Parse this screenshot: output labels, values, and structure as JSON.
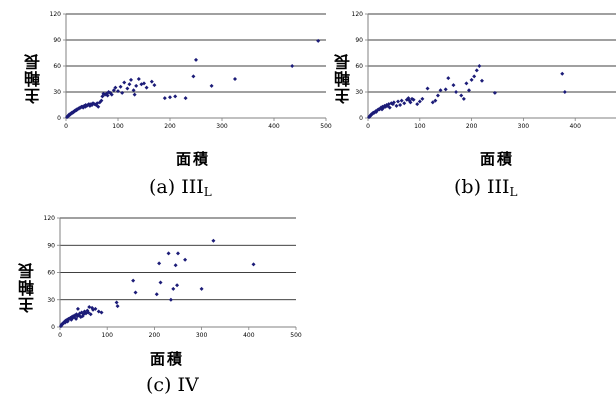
{
  "chart_data": [
    {
      "type": "scatter",
      "caption_prefix": "(a) III",
      "caption_sub": "L",
      "xlabel": "面積",
      "ylabel": "主軸長",
      "xlim": [
        0,
        500
      ],
      "ylim": [
        0,
        120
      ],
      "x_ticks": [
        0,
        100,
        200,
        300,
        400,
        500
      ],
      "y_ticks": [
        0,
        30,
        60,
        90,
        120
      ],
      "grid": "horizontal",
      "marker_color": "#1c1c78",
      "points": [
        [
          2,
          1
        ],
        [
          3,
          2
        ],
        [
          4,
          2
        ],
        [
          5,
          3
        ],
        [
          6,
          3
        ],
        [
          6,
          4
        ],
        [
          7,
          4
        ],
        [
          8,
          4
        ],
        [
          9,
          5
        ],
        [
          10,
          5
        ],
        [
          11,
          6
        ],
        [
          12,
          6
        ],
        [
          13,
          6
        ],
        [
          14,
          7
        ],
        [
          15,
          7
        ],
        [
          16,
          8
        ],
        [
          17,
          8
        ],
        [
          18,
          9
        ],
        [
          20,
          9
        ],
        [
          21,
          10
        ],
        [
          22,
          10
        ],
        [
          24,
          11
        ],
        [
          25,
          11
        ],
        [
          27,
          12
        ],
        [
          28,
          12
        ],
        [
          30,
          13
        ],
        [
          32,
          13
        ],
        [
          33,
          12
        ],
        [
          35,
          14
        ],
        [
          37,
          13
        ],
        [
          38,
          15
        ],
        [
          40,
          14
        ],
        [
          42,
          15
        ],
        [
          44,
          16
        ],
        [
          46,
          14
        ],
        [
          48,
          16
        ],
        [
          50,
          15
        ],
        [
          52,
          17
        ],
        [
          55,
          16
        ],
        [
          58,
          15
        ],
        [
          60,
          17
        ],
        [
          62,
          13
        ],
        [
          65,
          18
        ],
        [
          68,
          20
        ],
        [
          70,
          25
        ],
        [
          72,
          28
        ],
        [
          75,
          27
        ],
        [
          78,
          28
        ],
        [
          80,
          26
        ],
        [
          82,
          30
        ],
        [
          85,
          29
        ],
        [
          88,
          27
        ],
        [
          92,
          32
        ],
        [
          95,
          35
        ],
        [
          100,
          31
        ],
        [
          105,
          36
        ],
        [
          108,
          29
        ],
        [
          112,
          41
        ],
        [
          118,
          34
        ],
        [
          122,
          39
        ],
        [
          125,
          44
        ],
        [
          130,
          32
        ],
        [
          132,
          27
        ],
        [
          135,
          37
        ],
        [
          140,
          45
        ],
        [
          145,
          39
        ],
        [
          150,
          40
        ],
        [
          155,
          35
        ],
        [
          165,
          42
        ],
        [
          170,
          38
        ],
        [
          190,
          23
        ],
        [
          200,
          24
        ],
        [
          210,
          25
        ],
        [
          230,
          23
        ],
        [
          245,
          48
        ],
        [
          250,
          67
        ],
        [
          280,
          37
        ],
        [
          325,
          45
        ],
        [
          435,
          60
        ],
        [
          485,
          89
        ]
      ]
    },
    {
      "type": "scatter",
      "caption_prefix": "(b) III",
      "caption_sub": "L",
      "xlabel": "面積",
      "ylabel": "主軸長",
      "xlim": [
        0,
        500
      ],
      "ylim": [
        0,
        120
      ],
      "x_ticks": [
        0,
        100,
        200,
        300,
        400,
        500
      ],
      "y_ticks": [
        0,
        30,
        60,
        90,
        120
      ],
      "grid": "horizontal",
      "marker_color": "#1c1c78",
      "points": [
        [
          2,
          1
        ],
        [
          3,
          2
        ],
        [
          4,
          2
        ],
        [
          5,
          3
        ],
        [
          6,
          4
        ],
        [
          7,
          4
        ],
        [
          8,
          5
        ],
        [
          9,
          5
        ],
        [
          10,
          6
        ],
        [
          11,
          6
        ],
        [
          12,
          6
        ],
        [
          14,
          7
        ],
        [
          15,
          8
        ],
        [
          16,
          7
        ],
        [
          18,
          9
        ],
        [
          20,
          10
        ],
        [
          22,
          10
        ],
        [
          24,
          11
        ],
        [
          25,
          12
        ],
        [
          27,
          10
        ],
        [
          28,
          13
        ],
        [
          30,
          12
        ],
        [
          32,
          14
        ],
        [
          34,
          13
        ],
        [
          36,
          15
        ],
        [
          38,
          14
        ],
        [
          40,
          16
        ],
        [
          42,
          12
        ],
        [
          45,
          17
        ],
        [
          48,
          16
        ],
        [
          50,
          18
        ],
        [
          55,
          14
        ],
        [
          58,
          19
        ],
        [
          62,
          15
        ],
        [
          65,
          20
        ],
        [
          70,
          17
        ],
        [
          75,
          21
        ],
        [
          78,
          23
        ],
        [
          80,
          20
        ],
        [
          82,
          18
        ],
        [
          85,
          22
        ],
        [
          88,
          21
        ],
        [
          95,
          16
        ],
        [
          100,
          19
        ],
        [
          105,
          22
        ],
        [
          115,
          34
        ],
        [
          125,
          18
        ],
        [
          130,
          20
        ],
        [
          135,
          26
        ],
        [
          140,
          32
        ],
        [
          150,
          33
        ],
        [
          155,
          46
        ],
        [
          165,
          38
        ],
        [
          170,
          30
        ],
        [
          180,
          26
        ],
        [
          185,
          22
        ],
        [
          190,
          40
        ],
        [
          195,
          32
        ],
        [
          200,
          44
        ],
        [
          205,
          48
        ],
        [
          210,
          55
        ],
        [
          215,
          60
        ],
        [
          220,
          43
        ],
        [
          245,
          29
        ],
        [
          375,
          51
        ],
        [
          380,
          30
        ]
      ]
    },
    {
      "type": "scatter",
      "caption_prefix": "(c) IV",
      "caption_sub": "",
      "xlabel": "面積",
      "ylabel": "主軸長",
      "xlim": [
        0,
        500
      ],
      "ylim": [
        0,
        120
      ],
      "x_ticks": [
        0,
        100,
        200,
        300,
        400,
        500
      ],
      "y_ticks": [
        0,
        30,
        60,
        90,
        120
      ],
      "grid": "horizontal",
      "marker_color": "#1c1c78",
      "points": [
        [
          2,
          1
        ],
        [
          3,
          2
        ],
        [
          4,
          3
        ],
        [
          5,
          3
        ],
        [
          6,
          4
        ],
        [
          7,
          4
        ],
        [
          8,
          5
        ],
        [
          9,
          5
        ],
        [
          10,
          6
        ],
        [
          11,
          5
        ],
        [
          12,
          7
        ],
        [
          13,
          6
        ],
        [
          14,
          7
        ],
        [
          15,
          8
        ],
        [
          16,
          6
        ],
        [
          17,
          8
        ],
        [
          18,
          9
        ],
        [
          20,
          9
        ],
        [
          22,
          10
        ],
        [
          24,
          8
        ],
        [
          25,
          11
        ],
        [
          27,
          10
        ],
        [
          28,
          12
        ],
        [
          30,
          11
        ],
        [
          32,
          13
        ],
        [
          34,
          9
        ],
        [
          35,
          14
        ],
        [
          37,
          12
        ],
        [
          38,
          20
        ],
        [
          40,
          13
        ],
        [
          42,
          15
        ],
        [
          44,
          11
        ],
        [
          46,
          16
        ],
        [
          48,
          12
        ],
        [
          50,
          14
        ],
        [
          52,
          17
        ],
        [
          55,
          15
        ],
        [
          58,
          18
        ],
        [
          60,
          16
        ],
        [
          62,
          22
        ],
        [
          65,
          14
        ],
        [
          68,
          21
        ],
        [
          70,
          19
        ],
        [
          75,
          20
        ],
        [
          82,
          17
        ],
        [
          88,
          16
        ],
        [
          120,
          27
        ],
        [
          122,
          23
        ],
        [
          155,
          51
        ],
        [
          160,
          38
        ],
        [
          205,
          36
        ],
        [
          210,
          70
        ],
        [
          213,
          49
        ],
        [
          230,
          81
        ],
        [
          235,
          30
        ],
        [
          240,
          42
        ],
        [
          245,
          68
        ],
        [
          248,
          46
        ],
        [
          250,
          81
        ],
        [
          265,
          74
        ],
        [
          300,
          42
        ],
        [
          325,
          95
        ],
        [
          410,
          69
        ]
      ]
    }
  ]
}
